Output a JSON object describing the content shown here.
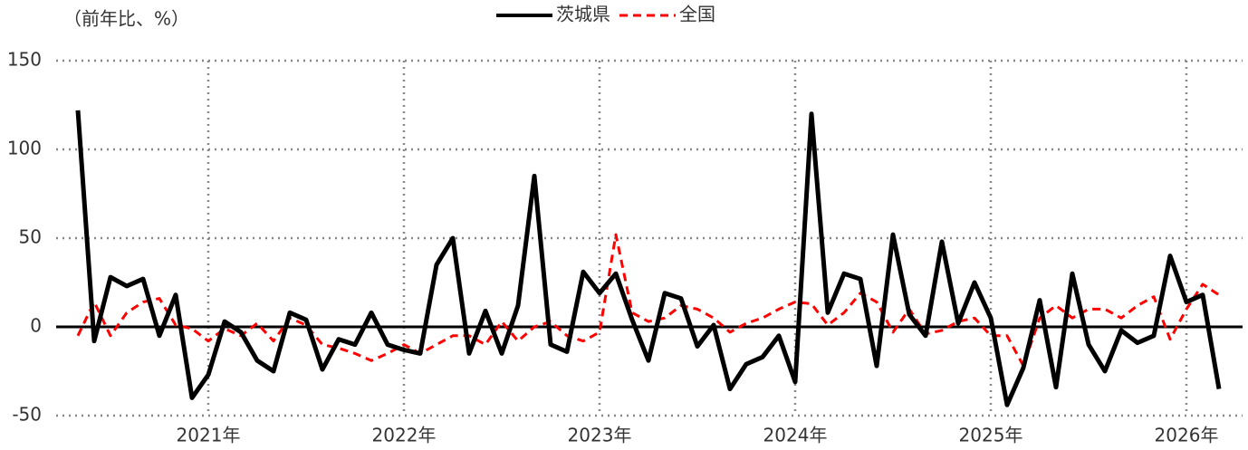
{
  "chart_data": {
    "type": "line",
    "y_axis_label": "（前年比、%）",
    "categories": [
      null,
      null,
      null,
      null,
      null,
      null,
      null,
      null,
      "2021年",
      null,
      null,
      null,
      null,
      null,
      null,
      null,
      null,
      null,
      null,
      null,
      "2022年",
      null,
      null,
      null,
      null,
      null,
      null,
      null,
      null,
      null,
      null,
      null,
      "2023年",
      null,
      null,
      null,
      null,
      null,
      null,
      null,
      null,
      null,
      null,
      null,
      "2024年",
      null,
      null,
      null,
      null,
      null,
      null,
      null,
      null,
      null,
      null,
      null,
      "2025年",
      null,
      null,
      null,
      null,
      null,
      null,
      null,
      null,
      null,
      null,
      null,
      "2026年",
      null,
      null
    ],
    "series": [
      {
        "name": "茨城県",
        "color": "#000000",
        "dash": false,
        "values": [
          122,
          -8,
          28,
          23,
          27,
          -5,
          18,
          -40,
          -27,
          3,
          -3,
          -19,
          -25,
          8,
          4,
          -24,
          -7,
          -10,
          8,
          -10,
          -13,
          -15,
          35,
          50,
          -15,
          9,
          -15,
          12,
          85,
          -10,
          -14,
          31,
          19,
          30,
          4,
          -19,
          19,
          16,
          -11,
          1,
          -35,
          -21,
          -17,
          -5,
          -31,
          120,
          8,
          30,
          27,
          -22,
          52,
          7,
          -5,
          48,
          2,
          25,
          5,
          -44,
          -23,
          15,
          -34,
          30,
          -10,
          -25,
          -2,
          -9,
          -5,
          40,
          14,
          18,
          -35
        ]
      },
      {
        "name": "全国",
        "color": "#ff0000",
        "dash": true,
        "values": [
          -5,
          14,
          -5,
          8,
          14,
          16,
          1,
          -1,
          -8,
          -1,
          -5,
          2,
          -8,
          5,
          1,
          -10,
          -12,
          -15,
          -19,
          -15,
          -10,
          -15,
          -10,
          -5,
          -5,
          -10,
          3,
          -8,
          0,
          3,
          -5,
          -8,
          -3,
          52,
          8,
          3,
          5,
          12,
          10,
          5,
          -3,
          2,
          5,
          10,
          14,
          13,
          1,
          8,
          19,
          14,
          -3,
          10,
          -4,
          -2,
          3,
          5,
          -5,
          -5,
          -22,
          5,
          12,
          5,
          10,
          10,
          5,
          12,
          17,
          -7,
          10,
          24,
          18
        ]
      }
    ],
    "ylim": [
      -50,
      150
    ],
    "yticks": [
      -50,
      0,
      50,
      100,
      150
    ],
    "grid": true
  }
}
